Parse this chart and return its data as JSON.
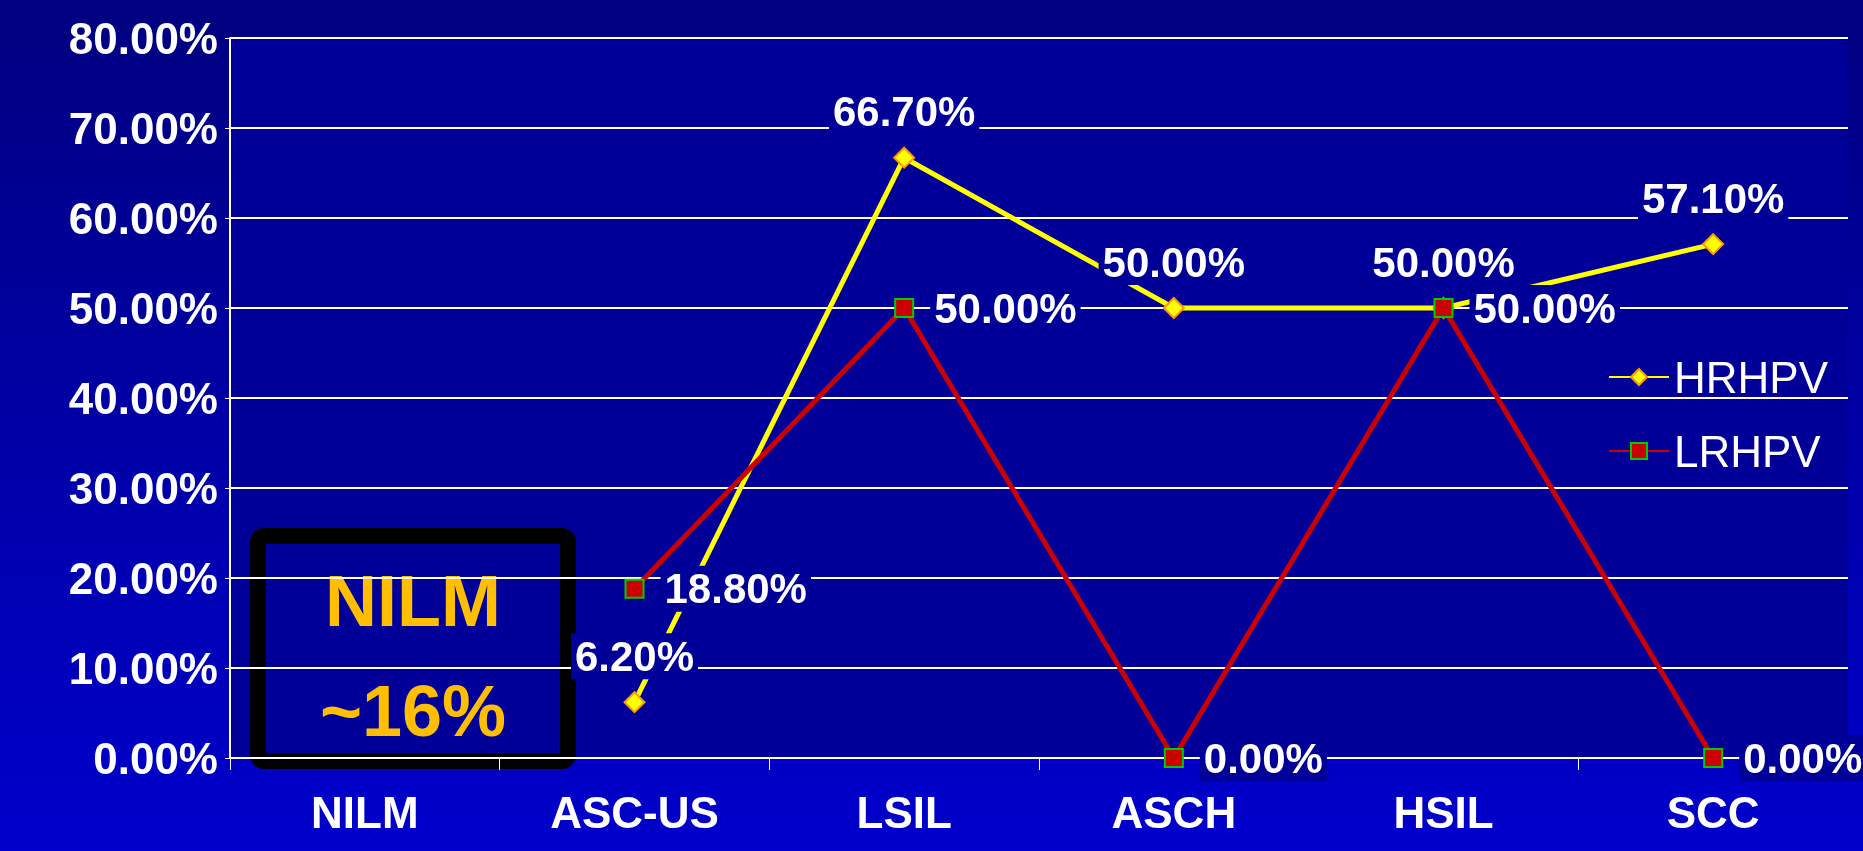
{
  "chart_data": {
    "type": "line",
    "categories": [
      "NILM",
      "ASC-US",
      "LSIL",
      "ASCH",
      "HSIL",
      "SCC"
    ],
    "series": [
      {
        "name": "HRHPV",
        "color": "#ffff00",
        "marker": "diamond",
        "values": [
          null,
          6.2,
          66.7,
          50,
          50,
          57.1
        ],
        "value_labels": [
          null,
          "6.20%",
          "66.70%",
          "50.00%",
          "50.00%",
          "57.10%"
        ]
      },
      {
        "name": "LRHPV",
        "color": "#cc0000",
        "marker": "square",
        "values": [
          null,
          18.8,
          50,
          0,
          50,
          0
        ],
        "value_labels": [
          null,
          "18.80%",
          "50.00%",
          "0.00%",
          "50.00%",
          "0.00%"
        ]
      }
    ],
    "ylim": [
      0,
      80
    ],
    "yticks": [
      {
        "value": 0,
        "label": "0.00%"
      },
      {
        "value": 10,
        "label": "10.00%"
      },
      {
        "value": 20,
        "label": "20.00%"
      },
      {
        "value": 30,
        "label": "30.00%"
      },
      {
        "value": 40,
        "label": "40.00%"
      },
      {
        "value": 50,
        "label": "50.00%"
      },
      {
        "value": 60,
        "label": "60.00%"
      },
      {
        "value": 70,
        "label": "70.00%"
      },
      {
        "value": 80,
        "label": "80.00%"
      }
    ],
    "grid": "y",
    "legend": "right",
    "annotations": [
      "NILM",
      "~16%"
    ]
  }
}
